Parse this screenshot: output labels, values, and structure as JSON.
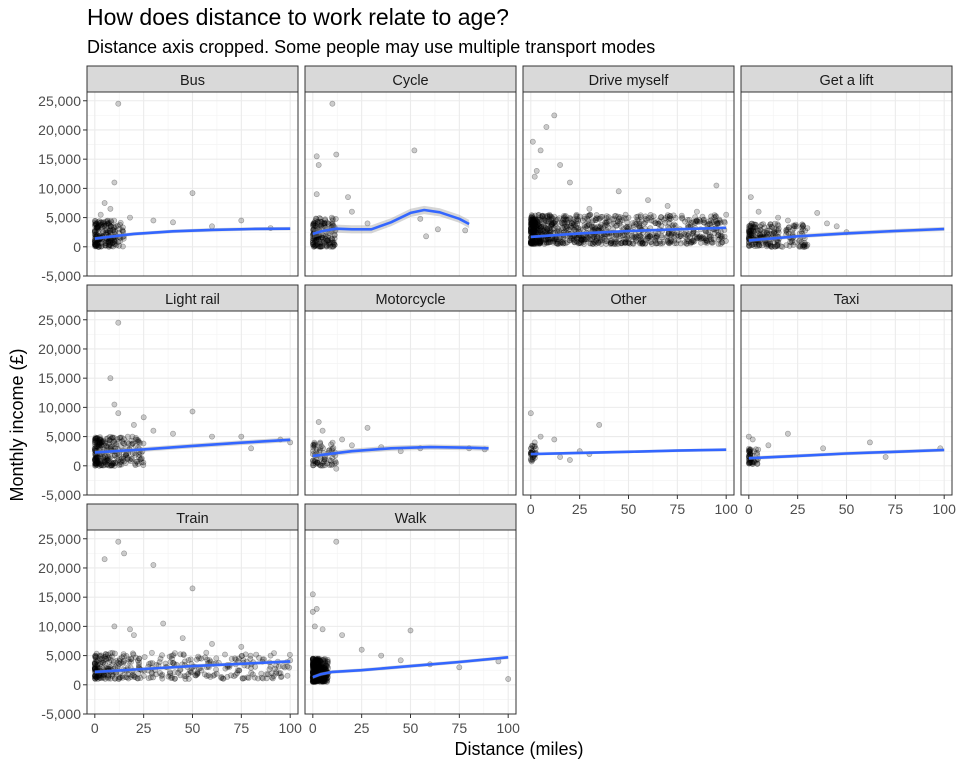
{
  "chart_data": {
    "type": "scatter",
    "title": "How does distance to work relate to age?",
    "subtitle": "Distance axis cropped. Some people may use multiple transport modes",
    "xlabel": "Distance (miles)",
    "ylabel": "Monthly income (£)",
    "xlim": [
      -4,
      104
    ],
    "ylim": [
      -5000,
      26500
    ],
    "x_ticks": [
      0,
      25,
      50,
      75,
      100
    ],
    "y_ticks": [
      -5000,
      0,
      5000,
      10000,
      15000,
      20000,
      25000
    ],
    "y_tick_labels": [
      "-5,000",
      "0",
      "5,000",
      "10,000",
      "15,000",
      "20,000",
      "25,000"
    ],
    "x_tick_labels": [
      "0",
      "25",
      "50",
      "75",
      "100"
    ],
    "grid": true,
    "point_color": "#000000",
    "point_alpha": 0.2,
    "smooth_color": "#3366FF",
    "ribbon_color": "#999999",
    "strip_fill": "#d9d9d9",
    "facets": [
      {
        "label": "Bus",
        "smooth": [
          [
            0,
            1400
          ],
          [
            20,
            2200
          ],
          [
            40,
            2650
          ],
          [
            60,
            2900
          ],
          [
            80,
            3050
          ],
          [
            100,
            3100
          ]
        ],
        "band": 300,
        "notable_points": [
          [
            12,
            24500
          ],
          [
            10,
            11000
          ],
          [
            50,
            9200
          ],
          [
            5,
            7500
          ],
          [
            8,
            6500
          ],
          [
            3,
            5500
          ],
          [
            18,
            5000
          ],
          [
            30,
            4500
          ],
          [
            40,
            4200
          ],
          [
            60,
            3500
          ],
          [
            75,
            4500
          ],
          [
            90,
            3200
          ]
        ],
        "cluster": {
          "xmax": 15,
          "ymin": 0,
          "ymax": 4500,
          "n": 200
        }
      },
      {
        "label": "Cycle",
        "smooth": [
          [
            0,
            2200
          ],
          [
            5,
            2700
          ],
          [
            12,
            3100
          ],
          [
            20,
            3000
          ],
          [
            30,
            3000
          ],
          [
            40,
            4200
          ],
          [
            50,
            5800
          ],
          [
            57,
            6300
          ],
          [
            65,
            5900
          ],
          [
            75,
            4800
          ],
          [
            80,
            3900
          ]
        ],
        "band": 700,
        "notable_points": [
          [
            10,
            24500
          ],
          [
            2,
            15500
          ],
          [
            12,
            15800
          ],
          [
            3,
            14000
          ],
          [
            52,
            16500
          ],
          [
            2,
            9000
          ],
          [
            18,
            8500
          ],
          [
            20,
            6000
          ],
          [
            28,
            4000
          ],
          [
            55,
            4800
          ],
          [
            64,
            3000
          ],
          [
            78,
            2800
          ],
          [
            58,
            1800
          ]
        ],
        "cluster": {
          "xmax": 12,
          "ymin": 0,
          "ymax": 5000,
          "n": 160
        }
      },
      {
        "label": "Drive myself",
        "smooth": [
          [
            0,
            1700
          ],
          [
            25,
            2300
          ],
          [
            50,
            2700
          ],
          [
            75,
            3000
          ],
          [
            100,
            3250
          ]
        ],
        "band": 250,
        "notable_points": [
          [
            12,
            22500
          ],
          [
            8,
            20500
          ],
          [
            1,
            18000
          ],
          [
            5,
            16500
          ],
          [
            15,
            14000
          ],
          [
            3,
            13000
          ],
          [
            2,
            12000
          ],
          [
            20,
            11000
          ],
          [
            45,
            9500
          ],
          [
            95,
            10500
          ],
          [
            60,
            8000
          ],
          [
            70,
            7000
          ],
          [
            30,
            6500
          ],
          [
            85,
            6000
          ],
          [
            100,
            5500
          ],
          [
            50,
            5000
          ]
        ],
        "cluster": {
          "xmax": 100,
          "ymin": 500,
          "ymax": 5500,
          "n": 900
        }
      },
      {
        "label": "Get a lift",
        "smooth": [
          [
            0,
            1100
          ],
          [
            25,
            1800
          ],
          [
            50,
            2300
          ],
          [
            75,
            2700
          ],
          [
            100,
            3050
          ]
        ],
        "band": 350,
        "notable_points": [
          [
            1,
            8500
          ],
          [
            35,
            5800
          ],
          [
            15,
            5000
          ],
          [
            20,
            4500
          ],
          [
            40,
            4000
          ],
          [
            45,
            3500
          ],
          [
            5,
            6000
          ],
          [
            30,
            3200
          ],
          [
            50,
            2500
          ]
        ],
        "cluster": {
          "xmax": 30,
          "ymin": 0,
          "ymax": 4000,
          "n": 220
        }
      },
      {
        "label": "Light rail",
        "smooth": [
          [
            0,
            2300
          ],
          [
            25,
            2800
          ],
          [
            50,
            3400
          ],
          [
            75,
            3950
          ],
          [
            100,
            4450
          ]
        ],
        "band": 400,
        "notable_points": [
          [
            12,
            24500
          ],
          [
            8,
            15000
          ],
          [
            10,
            10500
          ],
          [
            12,
            9000
          ],
          [
            50,
            9300
          ],
          [
            25,
            8300
          ],
          [
            30,
            6000
          ],
          [
            40,
            5500
          ],
          [
            60,
            5000
          ],
          [
            75,
            5000
          ],
          [
            80,
            3000
          ],
          [
            95,
            4500
          ],
          [
            100,
            4000
          ],
          [
            20,
            7000
          ]
        ],
        "cluster": {
          "xmax": 25,
          "ymin": 0,
          "ymax": 5000,
          "n": 260
        }
      },
      {
        "label": "Motorcycle",
        "smooth": [
          [
            0,
            1700
          ],
          [
            20,
            2500
          ],
          [
            40,
            3000
          ],
          [
            60,
            3200
          ],
          [
            80,
            3100
          ],
          [
            90,
            3000
          ]
        ],
        "band": 450,
        "notable_points": [
          [
            3,
            7500
          ],
          [
            5,
            6000
          ],
          [
            28,
            6500
          ],
          [
            15,
            4500
          ],
          [
            20,
            3500
          ],
          [
            35,
            3200
          ],
          [
            45,
            2500
          ],
          [
            55,
            3000
          ],
          [
            12,
            -500
          ],
          [
            80,
            3000
          ],
          [
            88,
            2800
          ]
        ],
        "cluster": {
          "xmax": 12,
          "ymin": 0,
          "ymax": 4000,
          "n": 70
        }
      },
      {
        "label": "Other",
        "smooth": [
          [
            0,
            2000
          ],
          [
            25,
            2200
          ],
          [
            50,
            2400
          ],
          [
            75,
            2600
          ],
          [
            100,
            2750
          ]
        ],
        "band": 250,
        "notable_points": [
          [
            0,
            9000
          ],
          [
            35,
            7000
          ],
          [
            5,
            5000
          ],
          [
            12,
            4500
          ],
          [
            2,
            4000
          ],
          [
            25,
            2500
          ],
          [
            15,
            1500
          ],
          [
            20,
            1000
          ],
          [
            30,
            2000
          ]
        ],
        "cluster": {
          "xmax": 3,
          "ymin": 500,
          "ymax": 3500,
          "n": 30
        }
      },
      {
        "label": "Taxi",
        "smooth": [
          [
            0,
            1300
          ],
          [
            25,
            1700
          ],
          [
            50,
            2100
          ],
          [
            75,
            2400
          ],
          [
            100,
            2700
          ]
        ],
        "band": 300,
        "notable_points": [
          [
            0,
            5000
          ],
          [
            2,
            4500
          ],
          [
            20,
            5500
          ],
          [
            10,
            3500
          ],
          [
            38,
            3000
          ],
          [
            62,
            4000
          ],
          [
            70,
            1500
          ],
          [
            98,
            3000
          ]
        ],
        "cluster": {
          "xmax": 5,
          "ymin": 300,
          "ymax": 3000,
          "n": 50
        }
      },
      {
        "label": "Train",
        "smooth": [
          [
            0,
            2200
          ],
          [
            25,
            2700
          ],
          [
            50,
            3200
          ],
          [
            75,
            3600
          ],
          [
            100,
            4000
          ]
        ],
        "band": 300,
        "notable_points": [
          [
            12,
            24500
          ],
          [
            15,
            22500
          ],
          [
            5,
            21500
          ],
          [
            30,
            20500
          ],
          [
            50,
            16500
          ],
          [
            10,
            10000
          ],
          [
            18,
            9500
          ],
          [
            35,
            10500
          ],
          [
            45,
            8000
          ],
          [
            60,
            7000
          ],
          [
            75,
            6500
          ],
          [
            90,
            5000
          ],
          [
            100,
            4200
          ],
          [
            20,
            8500
          ]
        ],
        "cluster": {
          "xmax": 100,
          "ymin": 1000,
          "ymax": 5500,
          "n": 380
        }
      },
      {
        "label": "Walk",
        "smooth": [
          [
            0,
            1300
          ],
          [
            4,
            1800
          ],
          [
            10,
            2200
          ],
          [
            25,
            2500
          ],
          [
            50,
            3200
          ],
          [
            75,
            3900
          ],
          [
            100,
            4700
          ]
        ],
        "band": 300,
        "notable_points": [
          [
            12,
            24500
          ],
          [
            0,
            15500
          ],
          [
            2,
            13000
          ],
          [
            0,
            12500
          ],
          [
            1,
            10000
          ],
          [
            5,
            9500
          ],
          [
            15,
            8500
          ],
          [
            50,
            9300
          ],
          [
            25,
            6000
          ],
          [
            35,
            5000
          ],
          [
            45,
            4200
          ],
          [
            60,
            3500
          ],
          [
            75,
            3000
          ],
          [
            100,
            1000
          ],
          [
            95,
            4000
          ]
        ],
        "cluster": {
          "xmax": 8,
          "ymin": 500,
          "ymax": 4500,
          "n": 320
        }
      }
    ]
  }
}
